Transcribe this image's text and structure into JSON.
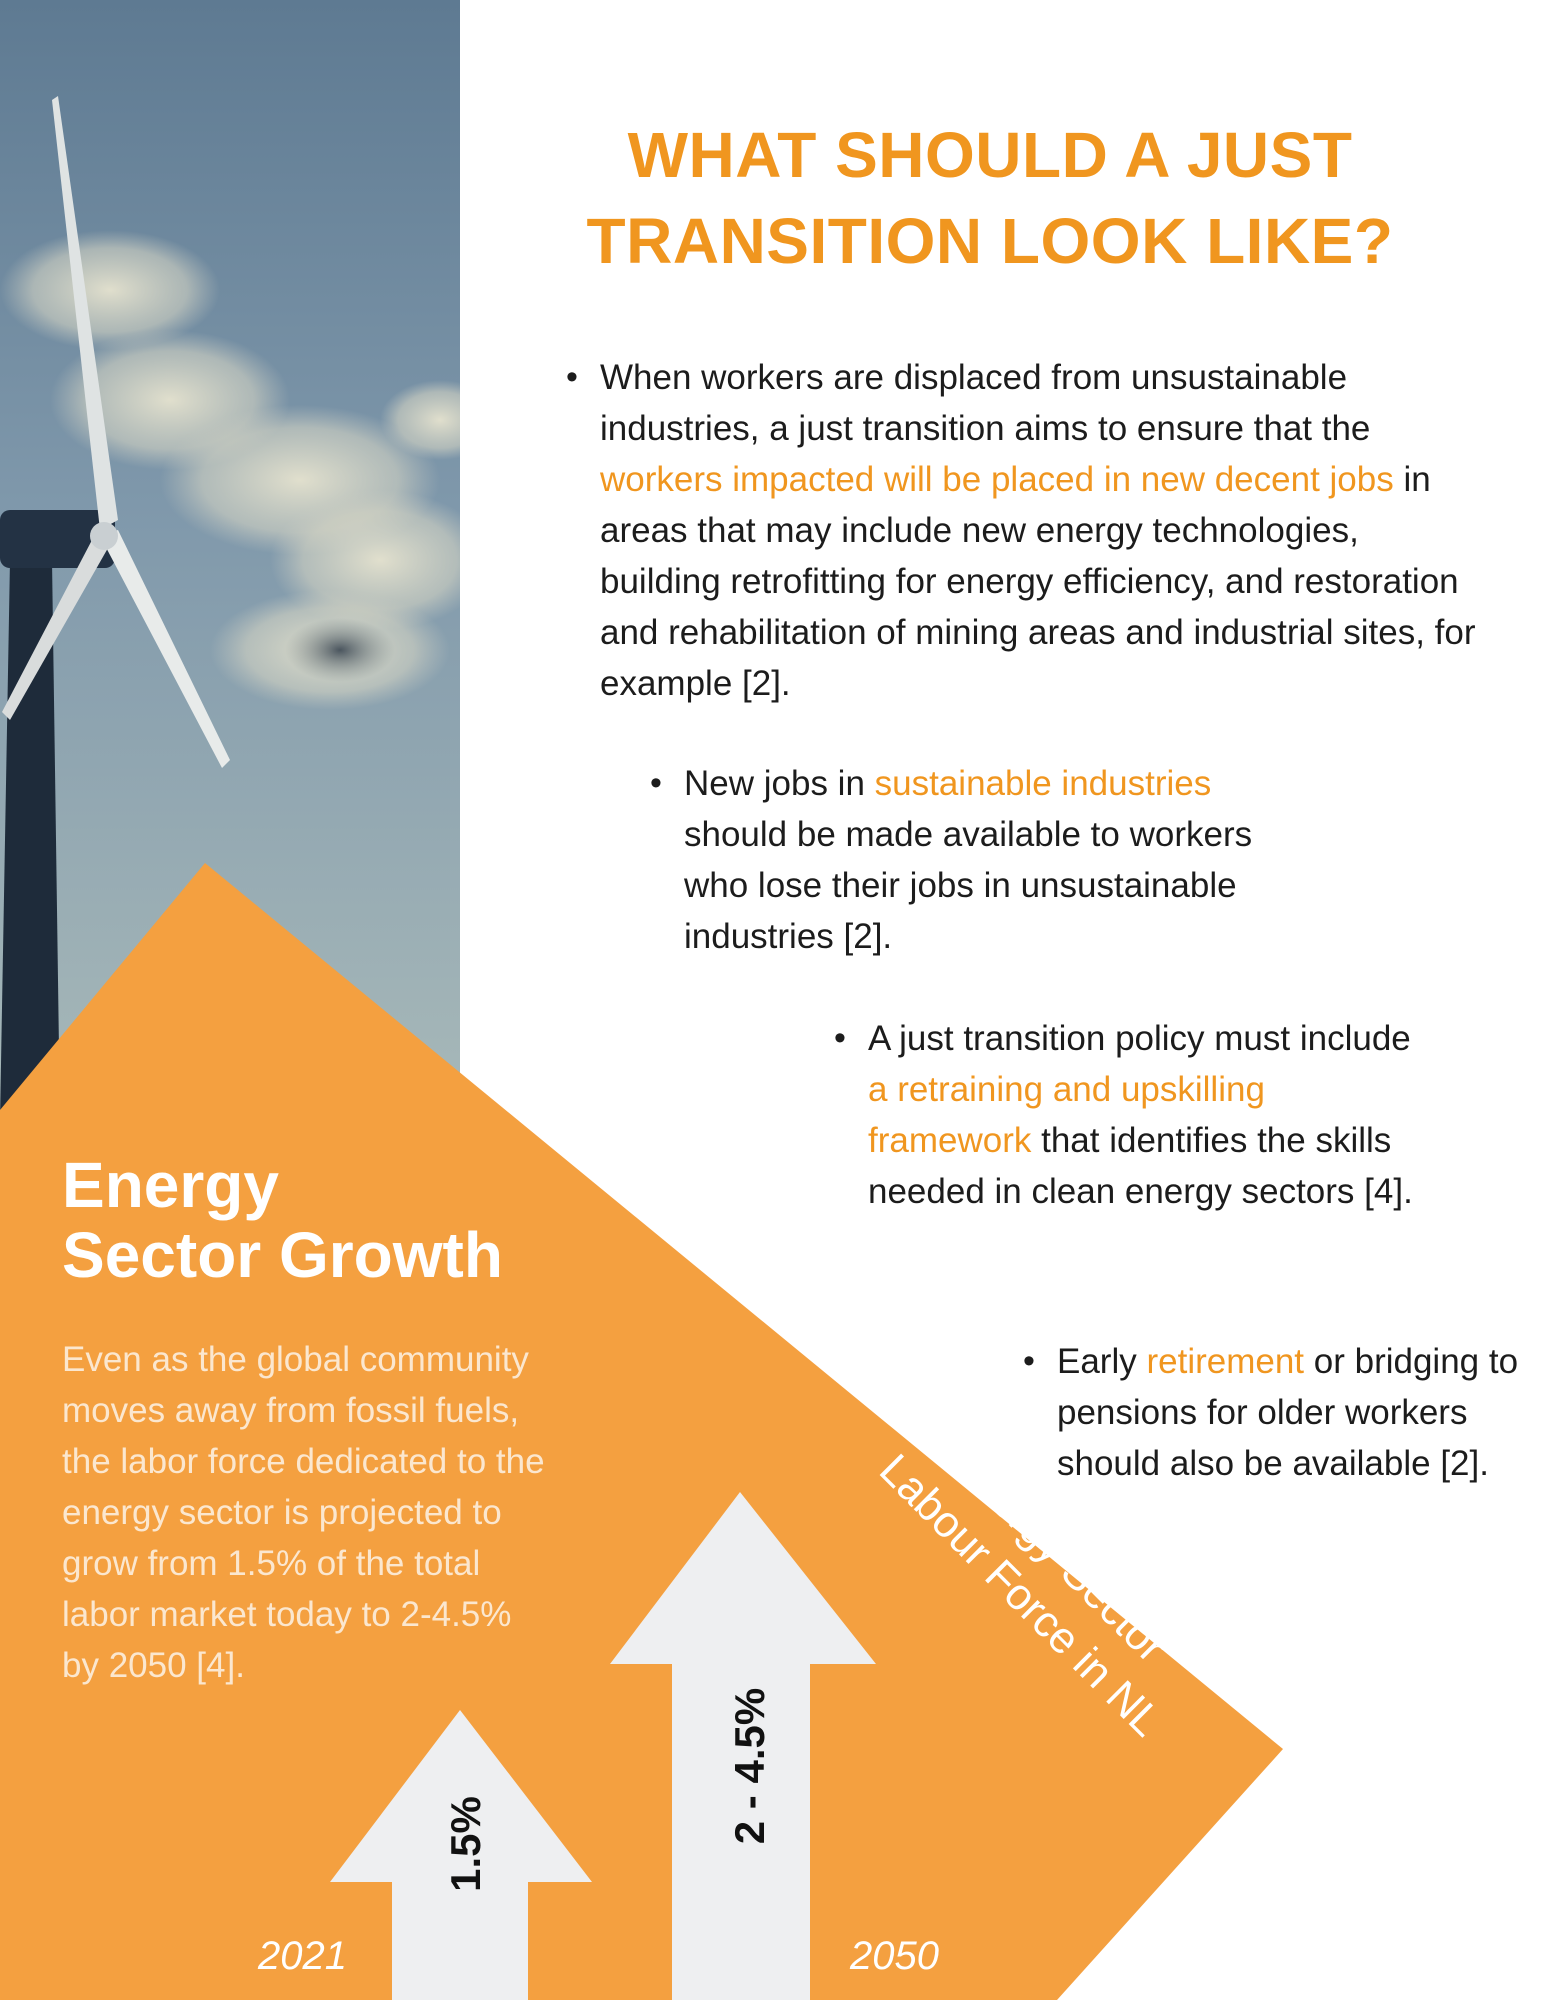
{
  "title": {
    "line1": "WHAT SHOULD A JUST",
    "line2": "TRANSITION LOOK LIKE?"
  },
  "bullets": [
    {
      "pre": "When workers are displaced from unsustainable industries, a just transition aims to ensure that the ",
      "highlight": "workers impacted will be placed in new decent jobs",
      "post": " in areas that may include new energy technologies, building retrofitting for energy efficiency, and restoration and rehabilitation of mining areas and industrial sites, for example [2]."
    },
    {
      "pre": "New jobs in ",
      "highlight": "sustainable industries",
      "post": " should be made available to workers who lose their jobs in unsustainable industries [2]."
    },
    {
      "pre": "A just transition policy must include ",
      "highlight": "a retraining and upskilling framework",
      "post": " that identifies the skills needed in clean energy sectors [4]."
    },
    {
      "pre": "Early ",
      "highlight": "retirement",
      "post": " or bridging to pensions for older workers should also be available [2]."
    }
  ],
  "growth": {
    "title_line1": "Energy",
    "title_line2": "Sector Growth",
    "body": "Even as the global community moves away from fossil fuels, the labor force dedicated to the energy sector is projected to grow from 1.5% of the total labor market today to 2-4.5% by 2050 [4]."
  },
  "graphic": {
    "label_line1": "Energy Sector",
    "label_line2": "Labour Force in NL",
    "arrow_2021": "1.5%",
    "arrow_2050": "2 - 4.5%",
    "year_2021": "2021",
    "year_2050": "2050"
  },
  "colors": {
    "accent_orange": "#f0961f",
    "panel_orange": "#f4a040",
    "arrow_grey": "#eeeff1",
    "text_dark": "#1c1c1c"
  }
}
